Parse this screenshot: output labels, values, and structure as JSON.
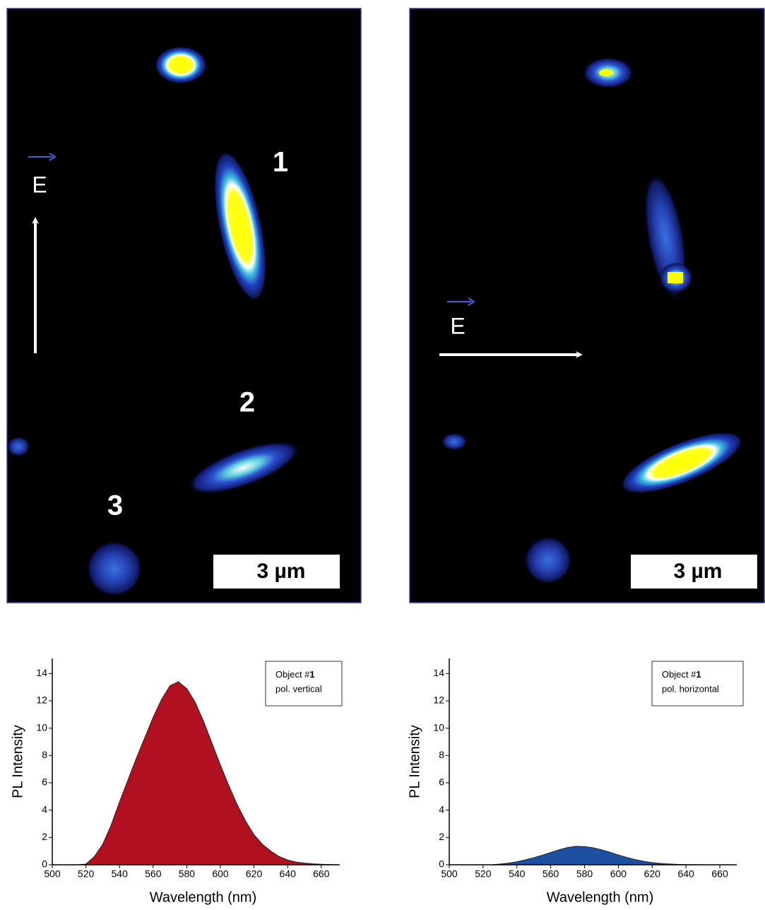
{
  "images": [
    {
      "labels": [
        "1",
        "2",
        "3"
      ],
      "field": "E",
      "scale_bar": "3 µm"
    },
    {
      "field": "E",
      "scale_bar": "3 µm"
    }
  ],
  "chart_data": [
    {
      "type": "area",
      "x_label": "Wavelength (nm)",
      "y_label": "PL Intensity",
      "annotation": {
        "object": "Object #",
        "number": "1",
        "polarization": "pol. vertical"
      },
      "x": [
        515,
        520,
        525,
        530,
        535,
        540,
        545,
        550,
        555,
        560,
        565,
        570,
        575,
        580,
        585,
        590,
        595,
        600,
        605,
        610,
        615,
        620,
        625,
        630,
        635,
        640,
        645,
        650,
        655,
        660,
        665,
        670
      ],
      "series": [
        {
          "color": "#b01020",
          "values": [
            0,
            0.05,
            0.6,
            1.5,
            2.9,
            4.6,
            6.2,
            7.8,
            9.3,
            10.8,
            12.1,
            13.1,
            13.4,
            12.9,
            11.9,
            10.5,
            8.9,
            7.3,
            5.8,
            4.4,
            3.2,
            2.2,
            1.5,
            1.0,
            0.6,
            0.35,
            0.2,
            0.12,
            0.07,
            0.04,
            0.02,
            0
          ]
        }
      ],
      "xlim": [
        500,
        671
      ],
      "xticks": [
        500,
        520,
        540,
        560,
        580,
        600,
        620,
        640,
        660
      ],
      "ylim": [
        0,
        15.1
      ],
      "yticks": [
        0,
        2,
        4,
        6,
        8,
        10,
        12,
        14
      ]
    },
    {
      "type": "area",
      "x_label": "Wavelength (nm)",
      "y_label": "PL Intensity",
      "annotation": {
        "object": "Object #",
        "number": "1",
        "polarization": "pol. horizontal"
      },
      "x": [
        525,
        530,
        535,
        540,
        545,
        550,
        555,
        560,
        565,
        570,
        575,
        580,
        585,
        590,
        595,
        600,
        605,
        610,
        615,
        620,
        625,
        630,
        635,
        640,
        645,
        650
      ],
      "series": [
        {
          "color": "#1f4fa0",
          "values": [
            0,
            0.05,
            0.12,
            0.22,
            0.36,
            0.52,
            0.7,
            0.9,
            1.1,
            1.27,
            1.35,
            1.33,
            1.25,
            1.1,
            0.92,
            0.72,
            0.54,
            0.38,
            0.25,
            0.16,
            0.1,
            0.06,
            0.03,
            0.015,
            0.01,
            0
          ]
        }
      ],
      "xlim": [
        500,
        670
      ],
      "xticks": [
        500,
        520,
        540,
        560,
        580,
        600,
        620,
        640,
        660
      ],
      "ylim": [
        0,
        15.1
      ],
      "yticks": [
        0,
        2,
        4,
        6,
        8,
        10,
        12,
        14
      ]
    }
  ]
}
